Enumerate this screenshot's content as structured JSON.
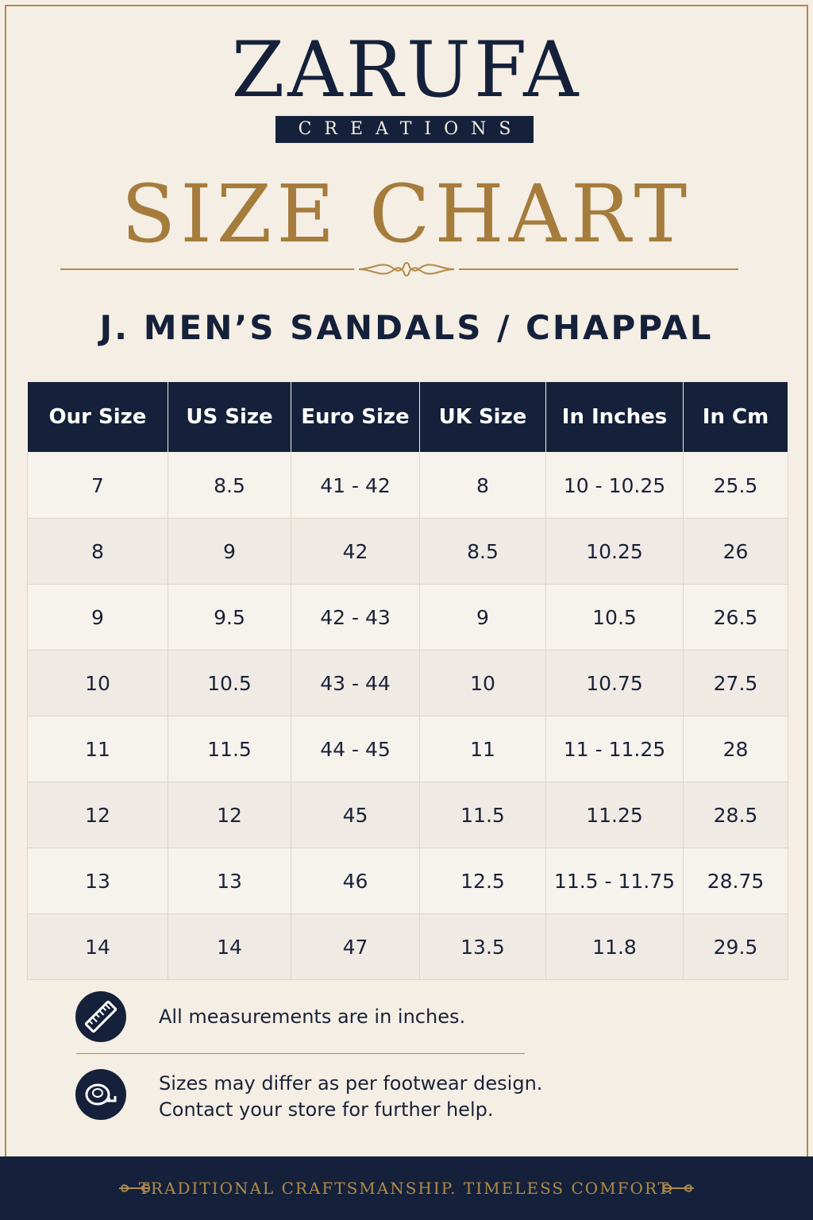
{
  "brand": {
    "name": "ZARUFA",
    "sub": "CREATIONS"
  },
  "title": "SIZE CHART",
  "subtitle": "J. MEN’S SANDALS / CHAPPAL",
  "table": {
    "headers": [
      "Our Size",
      "US Size",
      "Euro Size",
      "UK Size",
      "In Inches",
      "In Cm"
    ],
    "rows": [
      [
        "7",
        "8.5",
        "41 - 42",
        "8",
        "10 - 10.25",
        "25.5"
      ],
      [
        "8",
        "9",
        "42",
        "8.5",
        "10.25",
        "26"
      ],
      [
        "9",
        "9.5",
        "42 - 43",
        "9",
        "10.5",
        "26.5"
      ],
      [
        "10",
        "10.5",
        "43 - 44",
        "10",
        "10.75",
        "27.5"
      ],
      [
        "11",
        "11.5",
        "44 - 45",
        "11",
        "11 - 11.25",
        "28"
      ],
      [
        "12",
        "12",
        "45",
        "11.5",
        "11.25",
        "28.5"
      ],
      [
        "13",
        "13",
        "46",
        "12.5",
        "11.5 - 11.75",
        "28.75"
      ],
      [
        "14",
        "14",
        "47",
        "13.5",
        "11.8",
        "29.5"
      ]
    ]
  },
  "notes": [
    {
      "icon": "ruler-icon",
      "lines": [
        "All measurements are in inches."
      ]
    },
    {
      "icon": "measuring-tape-icon",
      "lines": [
        "Sizes may differ as per footwear design.",
        "Contact your store for further help."
      ]
    }
  ],
  "footer": {
    "tagline": "TRADITIONAL CRAFTSMANSHIP. TIMELESS COMFORT."
  },
  "colors": {
    "navy": "#15213a",
    "gold": "#a67c3c",
    "background": "#f4eee4"
  }
}
